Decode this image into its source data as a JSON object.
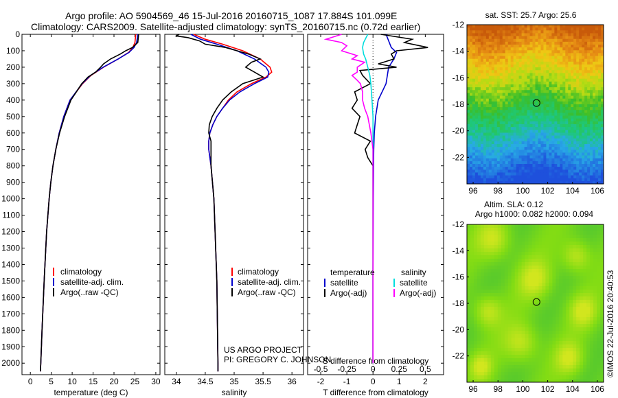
{
  "header": {
    "line1": "Argo profile: AO 5904569_46 15-Jul-2016 20160715_1087 17.884S 101.099E",
    "line2": "Climatology: CARS2009. Satellite-adjusted climatology: synTS_20160715.nc (0.72d earlier)"
  },
  "project": {
    "line1": "US ARGO PROJECT",
    "line2": "PI: GREGORY C. JOHNSON"
  },
  "credit": "©IMOS 22-Jul-2016 20:40:53",
  "colors": {
    "climatology": "#ff0000",
    "satellite": "#0000cc",
    "argo": "#000000",
    "sal_satellite": "#00dddd",
    "sal_argo": "#ff00ff"
  },
  "chart_data": [
    {
      "type": "line",
      "id": "temperature",
      "xlabel": "temperature (deg C)",
      "ylabel": "",
      "xlim": [
        -2,
        31
      ],
      "ylim": [
        2070,
        0
      ],
      "xticks": [
        0,
        5,
        10,
        15,
        20,
        25,
        30
      ],
      "yticks": [
        0,
        100,
        200,
        300,
        400,
        500,
        600,
        700,
        800,
        900,
        1000,
        1100,
        1200,
        1300,
        1400,
        1500,
        1600,
        1700,
        1800,
        1900,
        2000
      ],
      "legend": [
        "climatology",
        "satellite-adj. clim.",
        "Argo(..raw -QC)"
      ],
      "series": [
        {
          "name": "climatology",
          "depth": [
            0,
            50,
            80,
            110,
            150,
            200,
            250,
            300,
            400,
            500,
            600,
            700,
            800,
            900,
            1000,
            1200,
            1500,
            1800,
            2000,
            2050
          ],
          "values": [
            25.2,
            25.0,
            24.5,
            23.5,
            21.0,
            17.5,
            14.5,
            12.5,
            9.5,
            8.0,
            6.9,
            6.1,
            5.4,
            4.9,
            4.5,
            3.9,
            3.3,
            2.8,
            2.5,
            2.4
          ]
        },
        {
          "name": "satellite-adj. clim.",
          "depth": [
            0,
            50,
            80,
            110,
            150,
            200,
            250,
            300,
            400,
            500,
            600,
            700,
            800,
            900,
            1000,
            1200,
            1500,
            1800,
            2000,
            2050
          ],
          "values": [
            25.7,
            25.4,
            24.8,
            23.6,
            21.0,
            17.4,
            14.4,
            12.4,
            9.5,
            8.0,
            6.9,
            6.1,
            5.4,
            4.9,
            4.5,
            3.9,
            3.3,
            2.8,
            2.5,
            2.4
          ]
        },
        {
          "name": "Argo(..raw -QC)",
          "depth": [
            0,
            50,
            80,
            100,
            120,
            150,
            180,
            200,
            230,
            260,
            300,
            350,
            400,
            500,
            600,
            700,
            800,
            900,
            1000,
            1200,
            1500,
            1800,
            2000,
            2050
          ],
          "values": [
            25.9,
            25.7,
            24.4,
            22.8,
            21.5,
            19.2,
            17.5,
            16.8,
            15.6,
            13.8,
            12.3,
            11.0,
            9.7,
            8.2,
            7.0,
            6.1,
            5.4,
            4.9,
            4.5,
            3.9,
            3.3,
            2.8,
            2.5,
            2.4
          ]
        }
      ]
    },
    {
      "type": "line",
      "id": "salinity",
      "xlabel": "salinity",
      "xlim": [
        33.8,
        36.2
      ],
      "ylim": [
        2070,
        0
      ],
      "xticks": [
        34,
        34.5,
        35,
        35.5,
        36
      ],
      "legend": [
        "climatology",
        "satellite-adj. clim.",
        "Argo(..raw -QC)"
      ],
      "series": [
        {
          "name": "climatology",
          "depth": [
            0,
            30,
            60,
            100,
            150,
            200,
            230,
            260,
            300,
            350,
            400,
            450,
            500,
            550,
            600,
            650,
            700,
            800,
            1000,
            1500,
            2000,
            2050
          ],
          "values": [
            34.3,
            34.5,
            34.8,
            35.15,
            35.45,
            35.62,
            35.65,
            35.55,
            35.3,
            35.05,
            34.9,
            34.8,
            34.7,
            34.63,
            34.58,
            34.56,
            34.56,
            34.6,
            34.65,
            34.7,
            34.72,
            34.72
          ]
        },
        {
          "name": "satellite-adj. clim.",
          "depth": [
            0,
            30,
            60,
            100,
            150,
            200,
            230,
            260,
            300,
            350,
            400,
            450,
            500,
            550,
            600,
            650,
            700,
            800,
            1000,
            1500,
            2000,
            2050
          ],
          "values": [
            34.25,
            34.42,
            34.7,
            35.05,
            35.35,
            35.55,
            35.6,
            35.58,
            35.35,
            35.1,
            34.92,
            34.8,
            34.7,
            34.63,
            34.58,
            34.56,
            34.56,
            34.6,
            34.65,
            34.7,
            34.72,
            34.72
          ]
        },
        {
          "name": "Argo(..raw -QC)",
          "depth": [
            0,
            10,
            20,
            40,
            60,
            80,
            100,
            120,
            150,
            170,
            200,
            230,
            260,
            300,
            350,
            400,
            450,
            500,
            550,
            600,
            650,
            700,
            800,
            1000,
            1500,
            2000,
            2050
          ],
          "values": [
            34.05,
            34.0,
            34.2,
            34.4,
            34.5,
            34.85,
            35.05,
            35.25,
            35.45,
            35.3,
            35.2,
            35.35,
            35.5,
            35.15,
            34.95,
            34.8,
            34.7,
            34.62,
            34.57,
            34.56,
            34.6,
            34.6,
            34.6,
            34.65,
            34.7,
            34.72,
            34.72
          ]
        }
      ]
    },
    {
      "type": "line",
      "id": "difference",
      "xlabel": "T difference from climatology",
      "xlabel_top": "S difference from climatology",
      "xlim": [
        -2.5,
        2.7
      ],
      "ylim": [
        2070,
        0
      ],
      "xticks": [
        -2,
        -1,
        0,
        1,
        2
      ],
      "xticks_s_labels": [
        "-0.5",
        "-0.25",
        "0",
        "0.25",
        "0.5"
      ],
      "xticks_s_values": [
        -0.5,
        -0.25,
        0,
        0.25,
        0.5
      ],
      "legend_temperature": {
        "header": "temperature",
        "items": [
          "satellite",
          "Argo(-adj)"
        ]
      },
      "legend_salinity": {
        "header": "salinity",
        "items": [
          "satellite",
          "Argo(-adj)"
        ]
      },
      "series": [
        {
          "name": "T satellite",
          "depth": [
            0,
            40,
            80,
            110,
            150,
            200,
            250,
            300,
            400,
            500,
            600,
            700,
            800,
            1000,
            1500,
            2000
          ],
          "values": [
            0.5,
            0.6,
            0.7,
            0.9,
            0.8,
            0.6,
            0.55,
            0.5,
            0.2,
            0.1,
            0.05,
            0.03,
            0.02,
            0.01,
            0.0,
            0.0
          ]
        },
        {
          "name": "T Argo(-adj)",
          "depth": [
            0,
            30,
            50,
            80,
            100,
            120,
            150,
            180,
            200,
            220,
            250,
            300,
            350,
            400,
            450,
            500,
            550,
            600,
            650,
            700,
            750,
            800,
            900,
            1000,
            1500,
            2000
          ],
          "values": [
            0.3,
            1.5,
            1.2,
            2.1,
            0.9,
            0.7,
            0.8,
            0.2,
            0.9,
            -0.5,
            -0.4,
            -0.1,
            -0.7,
            -0.6,
            -0.8,
            -0.5,
            -0.6,
            -0.7,
            -0.1,
            -0.3,
            -0.2,
            0.0,
            0.0,
            0.0,
            0.0,
            0.0
          ]
        },
        {
          "name": "S satellite",
          "depth": [
            0,
            50,
            80,
            120,
            150,
            200,
            250,
            300,
            400,
            500,
            600,
            700,
            800,
            1000,
            1500,
            2000
          ],
          "values": [
            -0.05,
            -0.09,
            -0.1,
            -0.09,
            -0.07,
            -0.05,
            -0.03,
            -0.02,
            -0.01,
            0.0,
            0.0,
            0.0,
            0.0,
            0.0,
            0.0,
            0.0
          ]
        },
        {
          "name": "S Argo(-adj)",
          "depth": [
            0,
            30,
            50,
            70,
            100,
            130,
            150,
            170,
            200,
            230,
            250,
            280,
            300,
            350,
            400,
            450,
            500,
            600,
            700,
            800,
            1000,
            1500,
            2000
          ],
          "values": [
            -0.3,
            -0.45,
            -0.3,
            -0.25,
            -0.3,
            -0.15,
            -0.2,
            -0.08,
            -0.15,
            -0.15,
            -0.2,
            -0.15,
            -0.12,
            -0.1,
            -0.1,
            -0.08,
            -0.05,
            -0.02,
            0.0,
            0.0,
            0.0,
            0.0,
            0.0
          ]
        }
      ]
    },
    {
      "type": "heatmap",
      "id": "sst_map",
      "title": "sat. SST: 25.7 Argo: 25.6",
      "xlim": [
        95.5,
        106.5
      ],
      "ylim": [
        -24,
        -12
      ],
      "xticks": [
        96,
        98,
        100,
        102,
        104,
        106
      ],
      "yticks": [
        -12,
        -14,
        -16,
        -18,
        -20,
        -22
      ],
      "marker": {
        "lon": 101.1,
        "lat": -17.9
      }
    },
    {
      "type": "heatmap",
      "id": "sla_map",
      "title": "Altim. SLA: 0.12",
      "subtitle": "Argo h1000: 0.082 h2000: 0.094",
      "xlim": [
        95.5,
        106.5
      ],
      "ylim": [
        -24,
        -12
      ],
      "xticks": [
        96,
        98,
        100,
        102,
        104,
        106
      ],
      "yticks": [
        -12,
        -14,
        -16,
        -18,
        -20,
        -22
      ],
      "marker": {
        "lon": 101.1,
        "lat": -17.9
      }
    }
  ]
}
